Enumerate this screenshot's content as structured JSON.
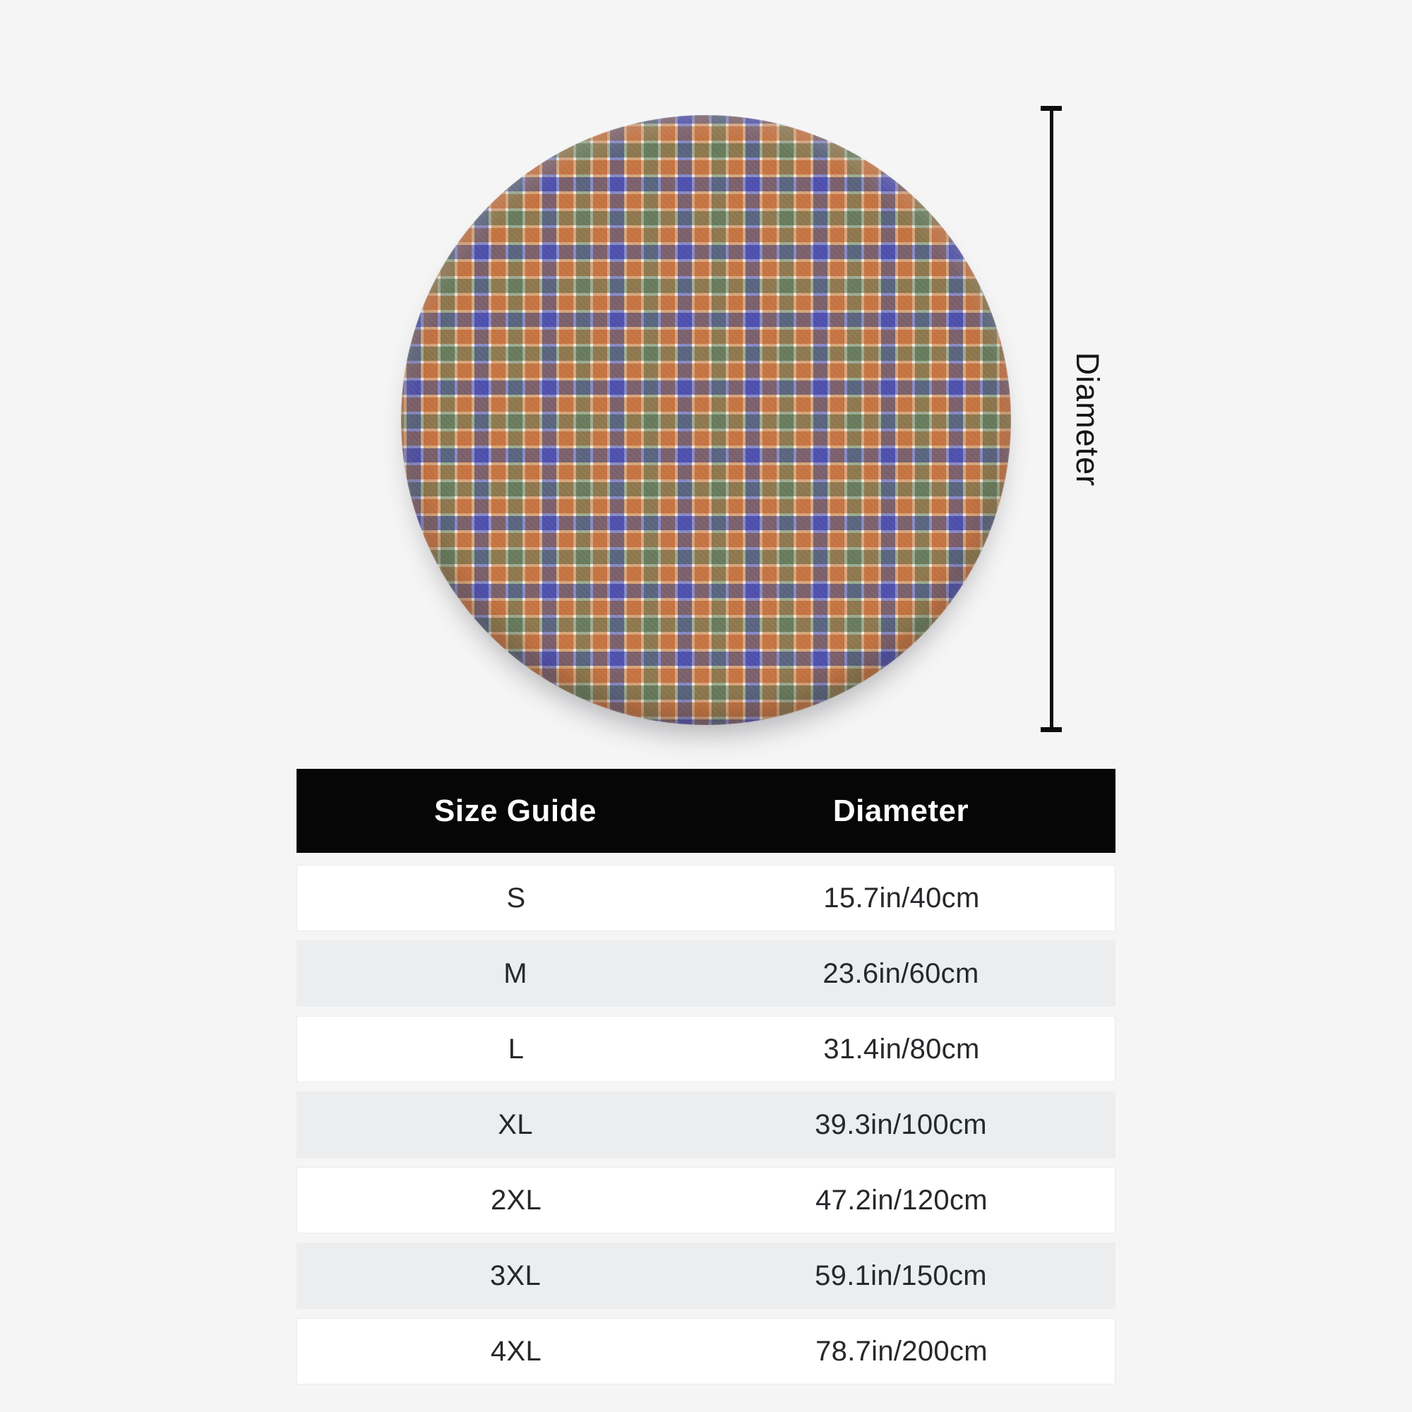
{
  "page": {
    "background_color": "#f5f5f6",
    "description": "Product size-guide mockup for a round plaid fleece rug"
  },
  "figure": {
    "product_name": "round-plaid-rug",
    "dimension_label": "Diameter",
    "plaid_colors": {
      "orange_square": "#c57443",
      "green_square": "#687c5d",
      "blue_band": "#4e51ad",
      "pinstripe": "#f6f3ee"
    },
    "dimension_line_color": "#0d0d0d"
  },
  "table": {
    "header_bg": "#060606",
    "headers": [
      {
        "label": "Size Guide"
      },
      {
        "label": "Diameter"
      }
    ],
    "rows": [
      {
        "size": "S",
        "diameter": "15.7in/40cm"
      },
      {
        "size": "M",
        "diameter": "23.6in/60cm"
      },
      {
        "size": "L",
        "diameter": "31.4in/80cm"
      },
      {
        "size": "XL",
        "diameter": "39.3in/100cm"
      },
      {
        "size": "2XL",
        "diameter": "47.2in/120cm"
      },
      {
        "size": "3XL",
        "diameter": "59.1in/150cm"
      },
      {
        "size": "4XL",
        "diameter": "78.7in/200cm"
      }
    ]
  }
}
